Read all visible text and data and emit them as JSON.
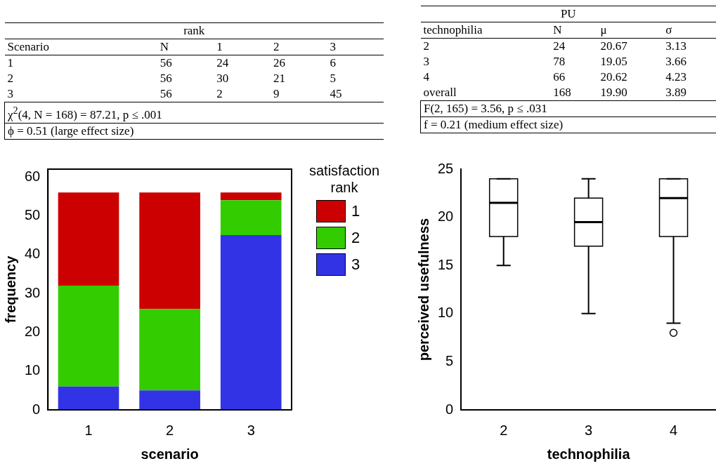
{
  "chart_data": [
    {
      "type": "other",
      "title": "rank",
      "categories": [
        "Scenario",
        "N",
        "1",
        "2",
        "3"
      ],
      "cell_labels": [
        [
          "1",
          "56",
          "24",
          "26",
          "6"
        ],
        [
          "2",
          "56",
          "30",
          "21",
          "5"
        ],
        [
          "3",
          "56",
          "2",
          "9",
          "45"
        ]
      ],
      "annotations": [
        "χ$^{2}$(4, N = 168) = 87.21, p ≤ .001",
        "ϕ = 0.51 (large effect size)"
      ]
    },
    {
      "type": "other",
      "title": "PU",
      "categories": [
        "technophilia",
        "N",
        "μ",
        "σ"
      ],
      "cell_labels": [
        [
          "2",
          "24",
          "20.67",
          "3.13"
        ],
        [
          "3",
          "78",
          "19.05",
          "3.66"
        ],
        [
          "4",
          "66",
          "20.62",
          "4.23"
        ],
        [
          "overall",
          "168",
          "19.90",
          "3.89"
        ]
      ],
      "annotations": [
        "F(2, 165) = 3.56, p ≤ .031",
        "f = 0.21 (medium effect size)"
      ]
    },
    {
      "type": "bar",
      "stacked": true,
      "xlabel": "scenario",
      "ylabel": "frequency",
      "legend_title": "satisfaction rank",
      "legend": "right",
      "categories": [
        "1",
        "2",
        "3"
      ],
      "series": [
        {
          "name": "3",
          "color": "#3333e6",
          "values": [
            6,
            5,
            45
          ]
        },
        {
          "name": "2",
          "color": "#33cc00",
          "values": [
            26,
            21,
            9
          ]
        },
        {
          "name": "1",
          "color": "#cc0000",
          "values": [
            24,
            30,
            2
          ]
        }
      ],
      "ylim": [
        0,
        62
      ],
      "yticks": [
        0,
        10,
        20,
        30,
        40,
        50,
        60
      ]
    },
    {
      "type": "box",
      "xlabel": "technophilia",
      "ylabel": "perceived usefulness",
      "categories": [
        "2",
        "3",
        "4"
      ],
      "boxes": [
        {
          "low": 15,
          "q1": 18,
          "median": 21.5,
          "q3": 24,
          "high": 24
        },
        {
          "low": 10,
          "q1": 17,
          "median": 19.5,
          "q3": 22,
          "high": 24
        },
        {
          "low": 9,
          "q1": 18,
          "median": 22,
          "q3": 24,
          "high": 24,
          "outliers": [
            8
          ]
        }
      ],
      "ylim": [
        0,
        25
      ],
      "yticks": [
        0,
        5,
        10,
        15,
        20,
        25
      ]
    }
  ]
}
